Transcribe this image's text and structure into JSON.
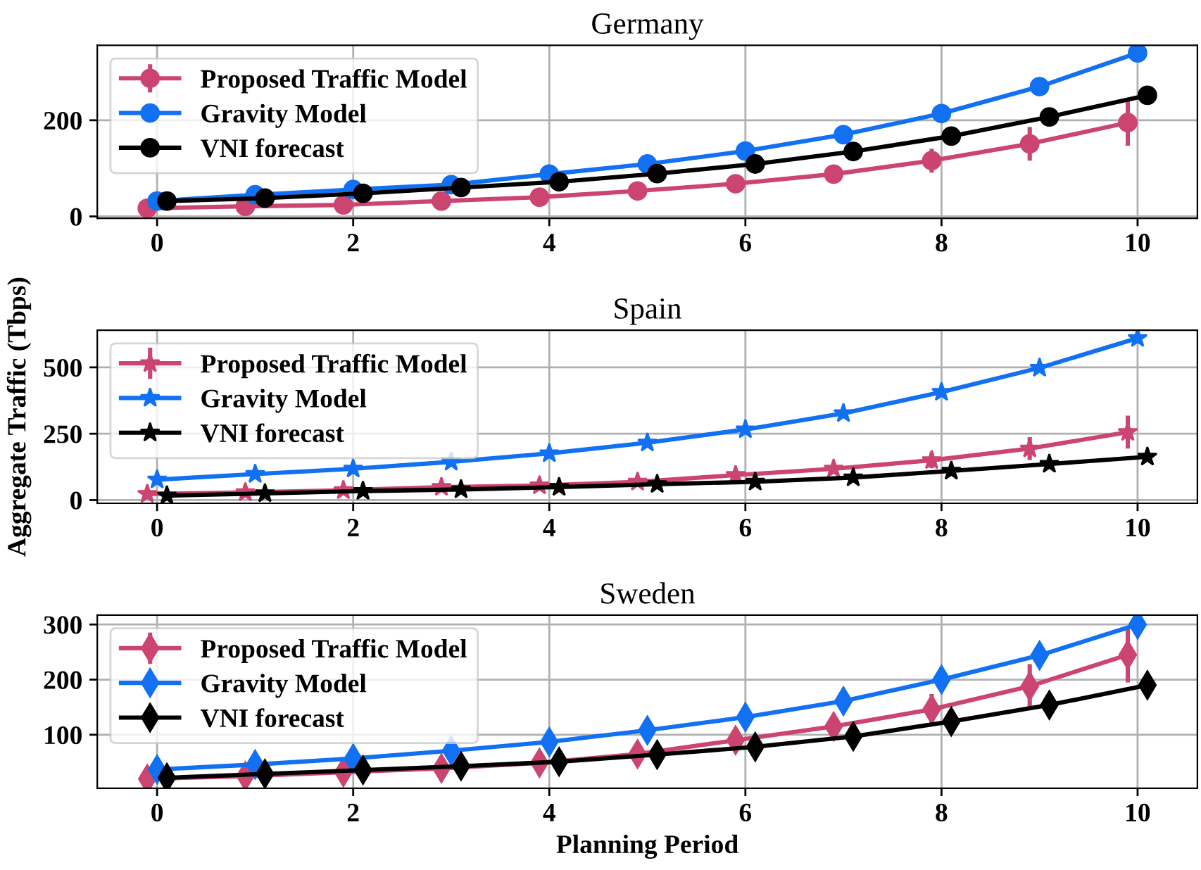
{
  "chart_data": [
    {
      "type": "line",
      "title": "Germany",
      "xlim": [
        -0.61,
        10.61
      ],
      "xticks": [
        0,
        2,
        4,
        6,
        8,
        10
      ],
      "ylim": [
        -4,
        356
      ],
      "yticks": [
        0,
        200
      ],
      "grid": true,
      "legend": "top left",
      "marker": "circle",
      "line_style": "solid",
      "series": [
        {
          "name": "Proposed Traffic Model",
          "color": "#cc4470",
          "x": [
            -0.1,
            0.9,
            1.9,
            2.9,
            3.9,
            4.9,
            5.9,
            6.9,
            7.9,
            8.9,
            9.9
          ],
          "values": [
            17,
            21,
            24,
            32,
            40,
            53,
            68,
            88,
            116,
            151,
            195
          ],
          "errors": [
            null,
            null,
            null,
            null,
            null,
            null,
            null,
            null,
            25,
            35,
            48
          ]
        },
        {
          "name": "Gravity Model",
          "color": "#1270f2",
          "x": [
            0,
            1,
            2,
            3,
            4,
            5,
            6,
            7,
            8,
            9,
            10
          ],
          "values": [
            32,
            45,
            56,
            66,
            88,
            109,
            136,
            170,
            214,
            270,
            340
          ]
        },
        {
          "name": "VNI forecast",
          "color": "#000000",
          "x": [
            0.1,
            1.1,
            2.1,
            3.1,
            4.1,
            5.1,
            6.1,
            7.1,
            8.1,
            9.1,
            10.1
          ],
          "values": [
            32,
            38,
            48,
            60,
            72,
            89,
            109,
            135,
            167,
            207,
            252
          ]
        }
      ]
    },
    {
      "type": "line",
      "title": "Spain",
      "ylabel": "Aggregate Traffic (Tbps)",
      "xlim": [
        -0.61,
        10.61
      ],
      "xticks": [
        0,
        2,
        4,
        6,
        8,
        10
      ],
      "ylim": [
        -12,
        640
      ],
      "yticks": [
        0,
        250,
        500
      ],
      "grid": true,
      "legend": "top left",
      "marker": "star",
      "line_style": "solid",
      "series": [
        {
          "name": "Proposed Traffic Model",
          "color": "#cc4470",
          "x": [
            -0.1,
            0.9,
            1.9,
            2.9,
            3.9,
            4.9,
            5.9,
            6.9,
            7.9,
            8.9,
            9.9
          ],
          "values": [
            23,
            29,
            37,
            49,
            55,
            69,
            94,
            118,
            150,
            194,
            256
          ],
          "errors": [
            null,
            null,
            null,
            null,
            null,
            null,
            null,
            null,
            30,
            43,
            62
          ]
        },
        {
          "name": "Gravity Model",
          "color": "#1270f2",
          "x": [
            0,
            1,
            2,
            3,
            4,
            5,
            6,
            7,
            8,
            9,
            10
          ],
          "values": [
            77,
            98,
            118,
            144,
            176,
            216,
            266,
            327,
            407,
            498,
            610
          ]
        },
        {
          "name": "VNI forecast",
          "color": "#000000",
          "x": [
            0.1,
            1.1,
            2.1,
            3.1,
            4.1,
            5.1,
            6.1,
            7.1,
            8.1,
            9.1,
            10.1
          ],
          "values": [
            17,
            25,
            34,
            40,
            49,
            60,
            69,
            85,
            110,
            136,
            163
          ]
        }
      ]
    },
    {
      "type": "line",
      "title": "Sweden",
      "xlabel": "Planning Period",
      "xlim": [
        -0.61,
        10.61
      ],
      "xticks": [
        0,
        2,
        4,
        6,
        8,
        10
      ],
      "ylim": [
        3,
        317
      ],
      "yticks": [
        100,
        200,
        300
      ],
      "grid": true,
      "legend": "top left",
      "marker": "diamond",
      "line_style": "solid",
      "series": [
        {
          "name": "Proposed Traffic Model",
          "color": "#cc4470",
          "x": [
            -0.1,
            0.9,
            1.9,
            2.9,
            3.9,
            4.9,
            5.9,
            6.9,
            7.9,
            8.9,
            9.9
          ],
          "values": [
            20,
            25,
            32,
            39,
            49,
            65,
            90,
            115,
            146,
            188,
            245
          ],
          "errors": [
            null,
            null,
            null,
            null,
            null,
            null,
            18,
            22,
            28,
            40,
            50
          ]
        },
        {
          "name": "Gravity Model",
          "color": "#1270f2",
          "x": [
            0,
            1,
            2,
            3,
            4,
            5,
            6,
            7,
            8,
            9,
            10
          ],
          "values": [
            37,
            46,
            57,
            71,
            87,
            108,
            132,
            161,
            200,
            244,
            300
          ]
        },
        {
          "name": "VNI forecast",
          "color": "#000000",
          "x": [
            0.1,
            1.1,
            2.1,
            3.1,
            4.1,
            5.1,
            6.1,
            7.1,
            8.1,
            9.1,
            10.1
          ],
          "values": [
            22,
            29,
            36,
            43,
            51,
            64,
            78,
            97,
            124,
            154,
            190
          ]
        }
      ]
    }
  ]
}
